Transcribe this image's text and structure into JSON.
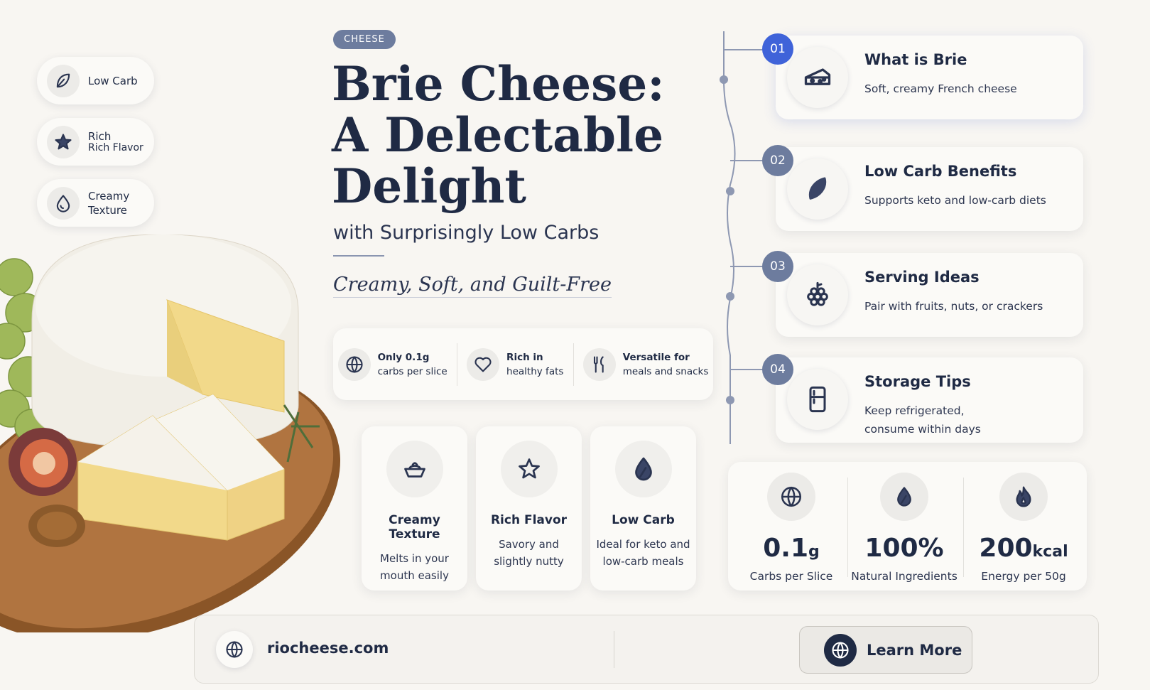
{
  "tag": "CHEESE",
  "title": [
    "Brie Cheese:",
    "A Delectable",
    "Delight"
  ],
  "subtitle": "with Surprisingly Low Carbs",
  "tagline": "Creamy, Soft, and Guilt-Free",
  "pills": [
    {
      "lines": [
        "Low Carb"
      ]
    },
    {
      "lines": [
        "Rich",
        "Rich Flavor"
      ]
    },
    {
      "lines": [
        "Creamy",
        "Texture"
      ]
    }
  ],
  "features": [
    {
      "title": "Only 0.1g",
      "text": "carbs per slice"
    },
    {
      "title": "Rich in",
      "text": "healthy fats"
    },
    {
      "title": "Versatile for",
      "text": "meals and snacks"
    }
  ],
  "cards": [
    {
      "title": "Creamy Texture",
      "lines": [
        "Melts in your",
        "mouth easily"
      ]
    },
    {
      "title": "Rich Flavor",
      "lines": [
        "Savory and",
        "slightly nutty"
      ]
    },
    {
      "title": "Low Carb",
      "lines": [
        "Ideal for keto and",
        "low-carb meals"
      ]
    }
  ],
  "timeline": [
    {
      "number": "01",
      "title": "What is Brie",
      "lines": [
        "Soft, creamy French cheese"
      ]
    },
    {
      "number": "02",
      "title": "Low Carb Benefits",
      "lines": [
        "Supports keto and low-carb diets"
      ]
    },
    {
      "number": "03",
      "title": "Serving Ideas",
      "lines": [
        "Pair with fruits, nuts, or crackers"
      ]
    },
    {
      "number": "04",
      "title": "Storage Tips",
      "lines": [
        "Keep refrigerated,",
        "consume within days"
      ]
    }
  ],
  "stats": [
    {
      "value": "0.1",
      "unit": "g",
      "label": "Carbs per Slice"
    },
    {
      "value": "100%",
      "unit": "",
      "label": "Natural Ingredients"
    },
    {
      "value": "200",
      "unit": "kcal",
      "label": "Energy per 50g"
    }
  ],
  "footer": {
    "website": "riocheese.com",
    "button": "Learn More"
  }
}
